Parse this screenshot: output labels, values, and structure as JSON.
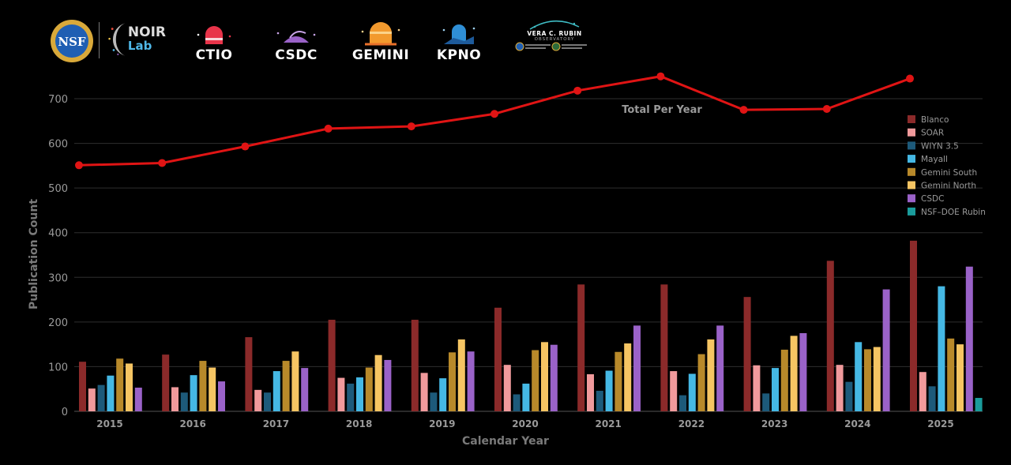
{
  "logos": {
    "nsf": "NSF",
    "noirlab_line1": "NOIR",
    "noirlab_line2": "Lab",
    "ctio": "CTIO",
    "csdc": "CSDC",
    "gemini": "GEMINI",
    "kpno": "KPNO",
    "rubin_line1": "VERA C. RUBIN",
    "rubin_line2": "OBSERVATORY"
  },
  "chart_data": {
    "type": "bar",
    "xlabel": "Calendar Year",
    "ylabel": "Publication Count",
    "ylim": [
      0,
      760
    ],
    "yticks": [
      0,
      100,
      200,
      300,
      400,
      500,
      600,
      700
    ],
    "grid": true,
    "legend_position": "right",
    "categories": [
      "2015",
      "2016",
      "2017",
      "2018",
      "2019",
      "2020",
      "2021",
      "2022",
      "2023",
      "2024",
      "2025"
    ],
    "series": [
      {
        "name": "Blanco",
        "color": "#8b2a2a",
        "values": [
          111,
          127,
          166,
          205,
          205,
          232,
          284,
          284,
          256,
          337,
          382
        ]
      },
      {
        "name": "SOAR",
        "color": "#f19a9c",
        "values": [
          51,
          54,
          48,
          75,
          86,
          104,
          83,
          90,
          103,
          104,
          88
        ]
      },
      {
        "name": "WIYN 3.5",
        "color": "#1d5a7a",
        "values": [
          59,
          42,
          42,
          62,
          42,
          38,
          46,
          36,
          40,
          66,
          56
        ]
      },
      {
        "name": "Mayall",
        "color": "#45b8e4",
        "values": [
          80,
          81,
          90,
          76,
          74,
          62,
          91,
          84,
          97,
          155,
          280
        ]
      },
      {
        "name": "Gemini South",
        "color": "#b8892a",
        "values": [
          118,
          113,
          113,
          98,
          132,
          137,
          133,
          128,
          138,
          139,
          163
        ]
      },
      {
        "name": "Gemini North",
        "color": "#f6c563",
        "values": [
          107,
          98,
          134,
          126,
          161,
          155,
          152,
          161,
          169,
          144,
          150
        ]
      },
      {
        "name": "CSDC",
        "color": "#9a62c8",
        "values": [
          53,
          67,
          97,
          115,
          134,
          149,
          192,
          192,
          175,
          273,
          324
        ]
      },
      {
        "name": "NSF–DOE Rubin",
        "color": "#1a9c9c",
        "values": [
          0,
          0,
          0,
          0,
          0,
          0,
          0,
          0,
          0,
          0,
          30
        ]
      }
    ],
    "total_line": {
      "label": "Total Per Year",
      "color": "#e01414",
      "values": [
        551,
        556,
        593,
        633,
        638,
        666,
        718,
        750,
        675,
        677,
        745
      ]
    }
  }
}
